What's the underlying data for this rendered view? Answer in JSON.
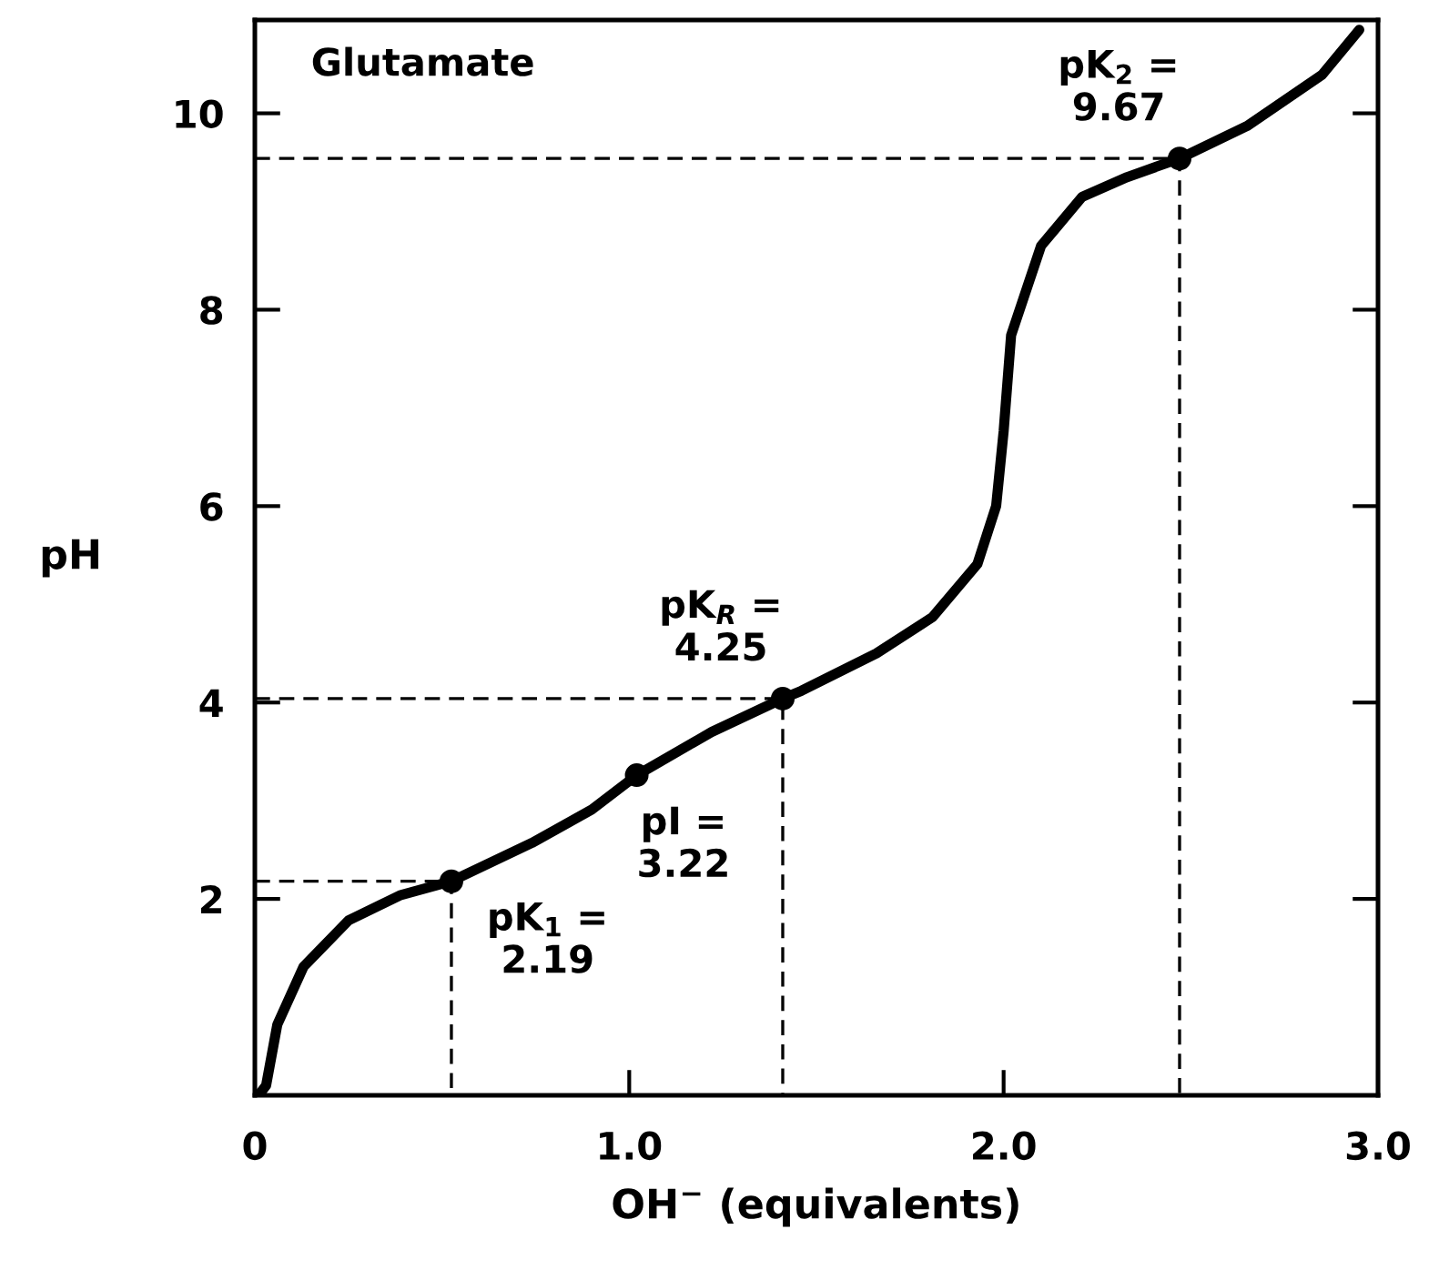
{
  "chart_data": {
    "type": "line",
    "title": "Glutamate",
    "xlabel": "OH$^{−}$ (equivalents)",
    "ylabel": "pH",
    "xlim": [
      0,
      3.0
    ],
    "ylim": [
      0,
      10.95
    ],
    "xticks": [
      {
        "value": 0,
        "label": "0"
      },
      {
        "value": 1.0,
        "label": "1.0"
      },
      {
        "value": 2.0,
        "label": "2.0"
      },
      {
        "value": 3.0,
        "label": "3.0"
      }
    ],
    "yticks": [
      2,
      4,
      6,
      8,
      10
    ],
    "grid": false,
    "legend": false,
    "series": [
      {
        "line_style": "solid",
        "marker": "none",
        "color": "#000000",
        "x": [
          0.01,
          0.03,
          0.06,
          0.13,
          0.25,
          0.39,
          0.525,
          0.74,
          0.9,
          1.02,
          1.22,
          1.41,
          1.46,
          1.66,
          1.81,
          1.93,
          1.98,
          2.0,
          2.02,
          2.1,
          2.21,
          2.33,
          2.47,
          2.65,
          2.85,
          2.95
        ],
        "values": [
          0.0,
          0.1,
          0.72,
          1.31,
          1.78,
          2.04,
          2.18,
          2.57,
          2.91,
          3.26,
          3.7,
          4.04,
          4.12,
          4.5,
          4.87,
          5.41,
          6.0,
          6.76,
          7.74,
          8.65,
          9.15,
          9.35,
          9.54,
          9.87,
          10.39,
          10.85
        ]
      },
      {
        "type": "line",
        "line_style": "dashed",
        "marker": "none",
        "color": "#000000",
        "x": [
          0,
          0.525,
          0.525
        ],
        "values": [
          2.18,
          2.18,
          0
        ]
      },
      {
        "type": "line",
        "line_style": "dashed",
        "marker": "none",
        "color": "#000000",
        "x": [
          0,
          1.41,
          1.41
        ],
        "values": [
          4.04,
          4.04,
          0
        ]
      },
      {
        "type": "line",
        "line_style": "dashed",
        "marker": "none",
        "color": "#000000",
        "x": [
          0,
          2.47,
          2.47
        ],
        "values": [
          9.54,
          9.54,
          0
        ]
      },
      {
        "type": "scatter",
        "marker": "circle",
        "color": "#000000",
        "x": [
          0.525,
          1.02,
          1.41,
          2.47
        ],
        "values": [
          2.18,
          3.26,
          4.04,
          9.54
        ]
      }
    ],
    "annotations": [
      {
        "text": "pK$_{1}$ =\n2.19",
        "x": 0.525,
        "y": 2.18
      },
      {
        "text": "pI =\n3.22",
        "x": 1.02,
        "y": 3.26
      },
      {
        "text": "pK$_{R}$ =\n4.25",
        "x": 1.41,
        "y": 4.04
      },
      {
        "text": "pK$_{2}$ =\n9.67",
        "x": 2.47,
        "y": 9.54
      }
    ]
  }
}
